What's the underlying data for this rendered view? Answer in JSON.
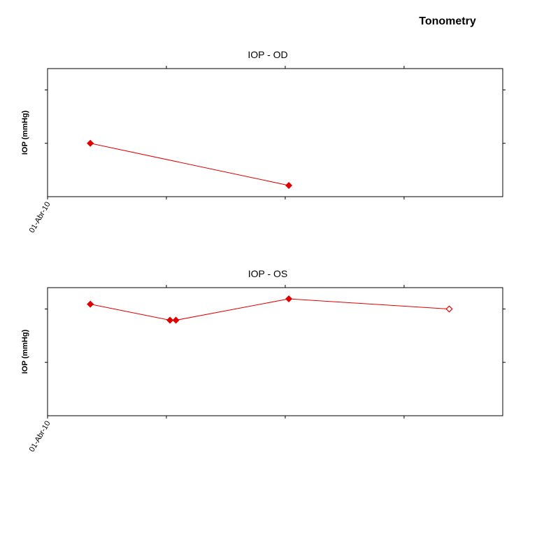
{
  "page_title": "Tonometry",
  "chart_data": [
    {
      "type": "line",
      "title": "IOP - OD",
      "ylabel": "IOP (mmHg)",
      "xlabel": "",
      "x_tick_labels": [
        "01-Abr-10",
        "",
        "",
        ""
      ],
      "x_ticks": [
        0,
        1,
        2,
        3
      ],
      "xlim": [
        0,
        3.83
      ],
      "y_ticks": [
        1,
        2
      ],
      "ylim": [
        0,
        2.4
      ],
      "color": "#e00000",
      "series": [
        {
          "points": [
            {
              "x": 0.36,
              "y": 1.0,
              "filled": true
            },
            {
              "x": 2.03,
              "y": 0.21,
              "filled": true
            }
          ]
        }
      ]
    },
    {
      "type": "line",
      "title": "IOP - OS",
      "ylabel": "IOP (mmHg)",
      "xlabel": "",
      "x_tick_labels": [
        "01-Abr-10",
        "",
        "",
        ""
      ],
      "x_ticks": [
        0,
        1,
        2,
        3
      ],
      "xlim": [
        0,
        3.83
      ],
      "y_ticks": [
        1,
        2
      ],
      "ylim": [
        0,
        2.4
      ],
      "color": "#e00000",
      "series": [
        {
          "points": [
            {
              "x": 0.36,
              "y": 2.09,
              "filled": true
            },
            {
              "x": 1.03,
              "y": 1.79,
              "filled": true
            },
            {
              "x": 1.08,
              "y": 1.79,
              "filled": true
            },
            {
              "x": 2.03,
              "y": 2.19,
              "filled": true
            },
            {
              "x": 3.38,
              "y": 2.0,
              "filled": false
            }
          ]
        }
      ]
    }
  ]
}
